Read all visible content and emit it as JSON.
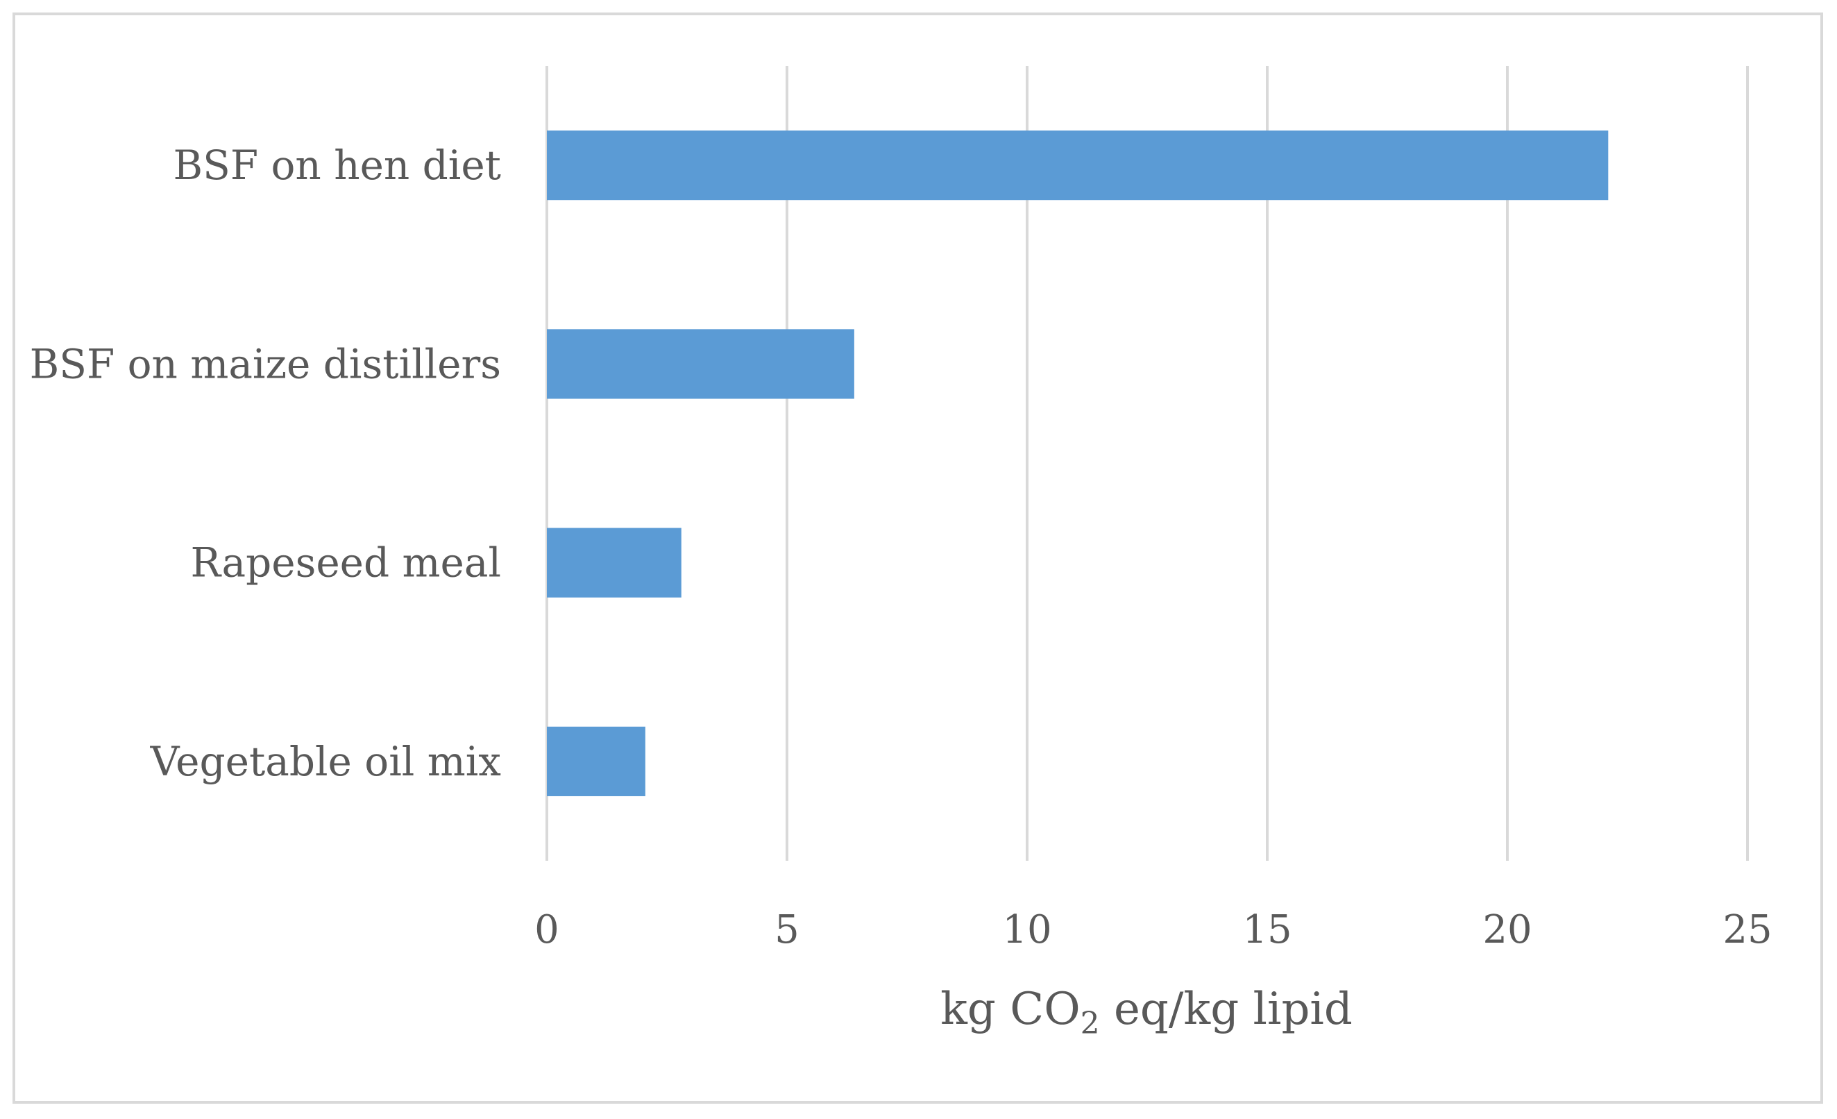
{
  "chart_data": {
    "type": "bar",
    "orientation": "horizontal",
    "title": "",
    "categories": [
      "BSF on hen diet",
      "BSF on maize distillers",
      "Rapeseed meal",
      "Vegetable oil mix"
    ],
    "values": [
      22.1,
      6.4,
      2.8,
      2.05
    ],
    "xlabel": {
      "pre": "kg CO",
      "sub": "2",
      "post": " eq/kg lipid"
    },
    "ylabel": "",
    "xlim": [
      0,
      25
    ],
    "xticks": [
      "0",
      "5",
      "10",
      "15",
      "20",
      "25"
    ],
    "grid": true,
    "legend": "none",
    "bar_color": "#5b9bd5",
    "grid_color": "#d9d9d9"
  }
}
